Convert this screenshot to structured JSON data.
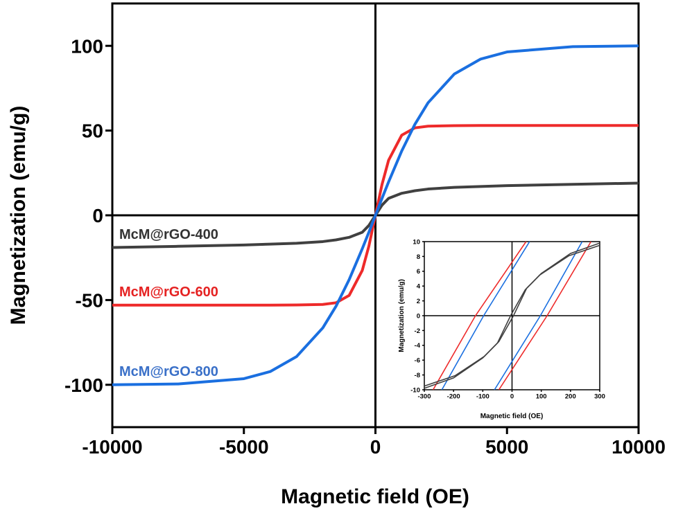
{
  "chart_data": {
    "type": "line",
    "xlabel": "Magnetic field (OE)",
    "ylabel": "Magnetization (emu/g)",
    "xlim": [
      -10000,
      10000
    ],
    "ylim": [
      -125,
      125
    ],
    "xticks": [
      "-10000",
      "-5000",
      "0",
      "5000",
      "10000"
    ],
    "xtick_values": [
      -10000,
      -5000,
      0,
      5000,
      10000
    ],
    "yticks": [
      "-100",
      "-50",
      "0",
      "50",
      "100"
    ],
    "ytick_values": [
      -100,
      -50,
      0,
      50,
      100
    ],
    "grid": false,
    "x": [
      -10000,
      -7500,
      -5000,
      -4000,
      -3000,
      -2000,
      -1500,
      -1000,
      -500,
      -250,
      0,
      250,
      500,
      1000,
      1500,
      2000,
      3000,
      4000,
      5000,
      7500,
      10000
    ],
    "series": [
      {
        "name": "McM@rGO-400",
        "color": "#404040",
        "values": [
          -19,
          -18.3,
          -17.5,
          -17,
          -16.5,
          -15.5,
          -14.5,
          -13,
          -10,
          -6,
          0,
          6,
          10,
          13,
          14.5,
          15.5,
          16.5,
          17,
          17.5,
          18.3,
          19
        ]
      },
      {
        "name": "McM@rGO-600",
        "color": "#ee2a2a",
        "values": [
          -53,
          -53,
          -53,
          -53,
          -52.9,
          -52.6,
          -51.6,
          -47.3,
          -32.5,
          -18.2,
          0,
          18.2,
          32.5,
          47.3,
          51.6,
          52.6,
          52.9,
          53,
          53,
          53,
          53
        ]
      },
      {
        "name": "McM@rGO-800",
        "color": "#1a6fe0",
        "values": [
          -100,
          -99.5,
          -96.4,
          -92.2,
          -83.4,
          -66.4,
          -53.7,
          -38,
          -19.7,
          -10,
          0,
          10,
          19.7,
          38,
          53.7,
          66.4,
          83.4,
          92.2,
          96.4,
          99.5,
          100
        ]
      }
    ],
    "legend_labels": [
      {
        "text": "McM@rGO-400",
        "color": "#333333"
      },
      {
        "text": "McM@rGO-600",
        "color": "#e52222"
      },
      {
        "text": "McM@rGO-800",
        "color": "#3a70c8"
      }
    ],
    "inset": {
      "xlabel": "Magnetic field (OE)",
      "ylabel": "Magnetization (emu/g)",
      "xlim": [
        -300,
        300
      ],
      "ylim": [
        -10,
        10
      ],
      "xticks": [
        "-300",
        "-200",
        "-100",
        "0",
        "100",
        "200",
        "300"
      ],
      "xtick_values": [
        -300,
        -200,
        -100,
        0,
        100,
        200,
        300
      ],
      "yticks": [
        "-10",
        "-8",
        "-6",
        "-4",
        "-2",
        "0",
        "2",
        "4",
        "6",
        "8",
        "10"
      ],
      "ytick_values": [
        -10,
        -8,
        -6,
        -4,
        -2,
        0,
        2,
        4,
        6,
        8,
        10
      ],
      "loops": [
        {
          "name": "McM@rGO-600",
          "color": "#ee2a2a",
          "branches": [
            {
              "x": [
                -270,
                -125,
                48
              ],
              "y": [
                -10,
                0,
                10
              ]
            },
            {
              "x": [
                -45,
                120,
                270
              ],
              "y": [
                -10,
                0,
                10
              ]
            }
          ]
        },
        {
          "name": "McM@rGO-800",
          "color": "#1a6fe0",
          "branches": [
            {
              "x": [
                -240,
                -97,
                60
              ],
              "y": [
                -10,
                0,
                10
              ]
            },
            {
              "x": [
                -60,
                97,
                240
              ],
              "y": [
                -10,
                0,
                10
              ]
            }
          ]
        },
        {
          "name": "McM@rGO-400",
          "color": "#404040",
          "branches": [
            {
              "x": [
                -300,
                -200,
                -100,
                -50,
                -5,
                45,
                95,
                195,
                300
              ],
              "y": [
                -9.8,
                -8.4,
                -5.7,
                -3.7,
                0,
                3.5,
                5.5,
                8.1,
                9.5
              ]
            },
            {
              "x": [
                -300,
                -195,
                -95,
                -45,
                5,
                50,
                100,
                200,
                300
              ],
              "y": [
                -9.5,
                -8.1,
                -5.5,
                -3.5,
                0,
                3.7,
                5.7,
                8.4,
                9.8
              ]
            }
          ]
        }
      ]
    }
  }
}
